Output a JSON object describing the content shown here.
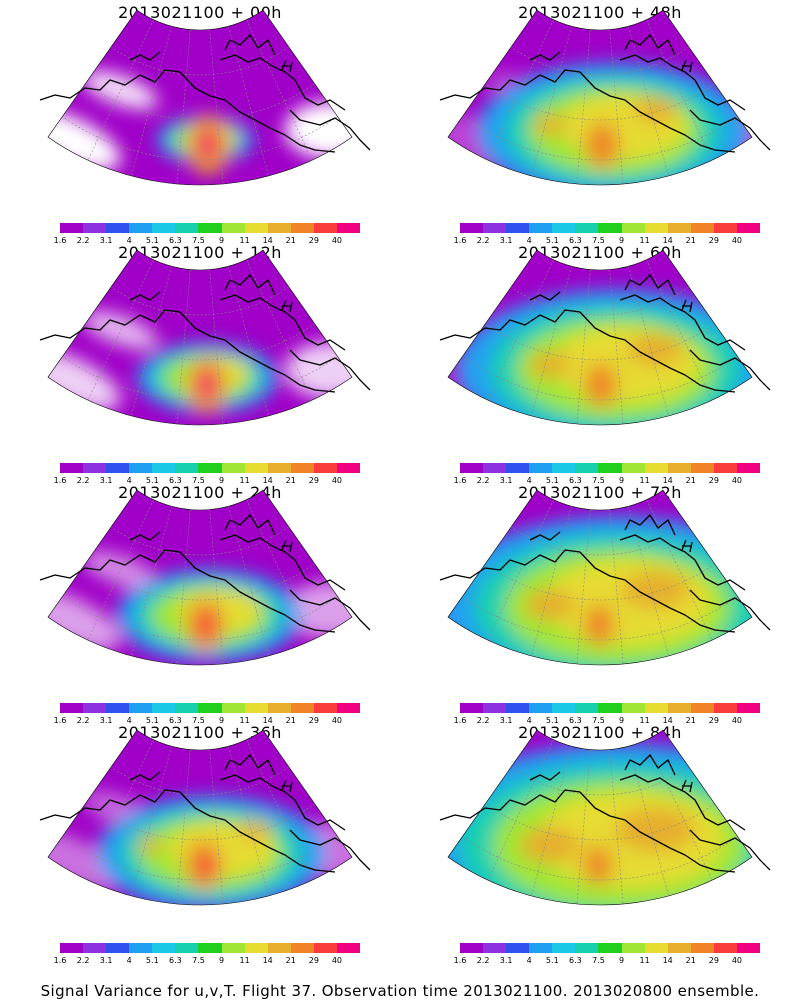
{
  "figure_caption": "Signal Variance for u,v,T. Flight 37. Observation time 2013021100. 2013020800 ensemble.",
  "panels": [
    {
      "title": "2013021100 + 00h",
      "lead_hours": 0
    },
    {
      "title": "2013021100 + 12h",
      "lead_hours": 12
    },
    {
      "title": "2013021100 + 24h",
      "lead_hours": 24
    },
    {
      "title": "2013021100 + 36h",
      "lead_hours": 36
    },
    {
      "title": "2013021100 + 48h",
      "lead_hours": 48
    },
    {
      "title": "2013021100 + 60h",
      "lead_hours": 60
    },
    {
      "title": "2013021100 + 72h",
      "lead_hours": 72
    },
    {
      "title": "2013021100 + 84h",
      "lead_hours": 84
    }
  ],
  "colorbar": {
    "labels": [
      "1.6",
      "2.2",
      "3.1",
      "4",
      "5.1",
      "6.3",
      "7.5",
      "9",
      "11",
      "14",
      "21",
      "29",
      "40"
    ],
    "colors": [
      "#a000c8",
      "#8c30e0",
      "#3050f0",
      "#20a0f0",
      "#1cc8e8",
      "#18d0b0",
      "#20d020",
      "#a0e632",
      "#e6dc32",
      "#e6af2d",
      "#f08228",
      "#fa3c3c",
      "#f00082"
    ]
  }
}
